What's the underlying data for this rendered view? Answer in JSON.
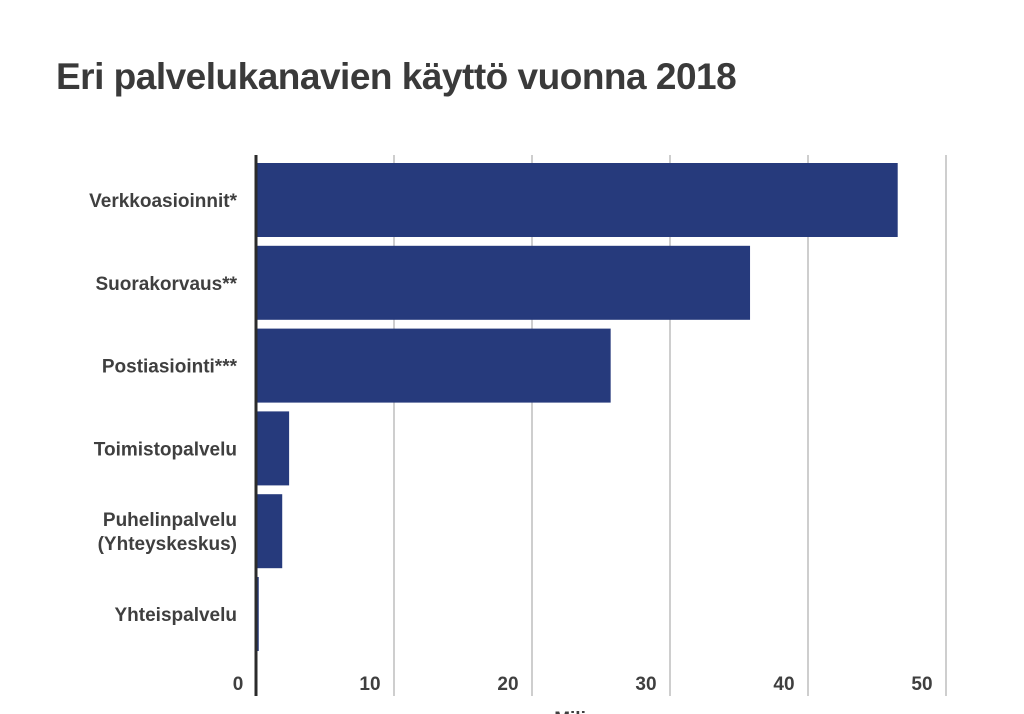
{
  "chart_data": {
    "type": "bar",
    "orientation": "horizontal",
    "title": "Eri palvelukanavien käyttö vuonna 2018",
    "xlabel": "Miljoonaa",
    "categories": [
      [
        "Verkkoasioinnit*"
      ],
      [
        "Suorakorvaus**"
      ],
      [
        "Postiasiointi***"
      ],
      [
        "Toimistopalvelu"
      ],
      [
        "Puhelinpalvelu",
        "(Yhteyskeskus)"
      ],
      [
        "Yhteispalvelu"
      ]
    ],
    "values": [
      46.5,
      35.8,
      25.7,
      2.4,
      1.9,
      0.2
    ],
    "xlim": [
      0,
      50
    ],
    "xticks": [
      "0",
      "10",
      "20",
      "30",
      "40",
      "50"
    ],
    "grid": true,
    "bar_color": "#263a7c"
  }
}
